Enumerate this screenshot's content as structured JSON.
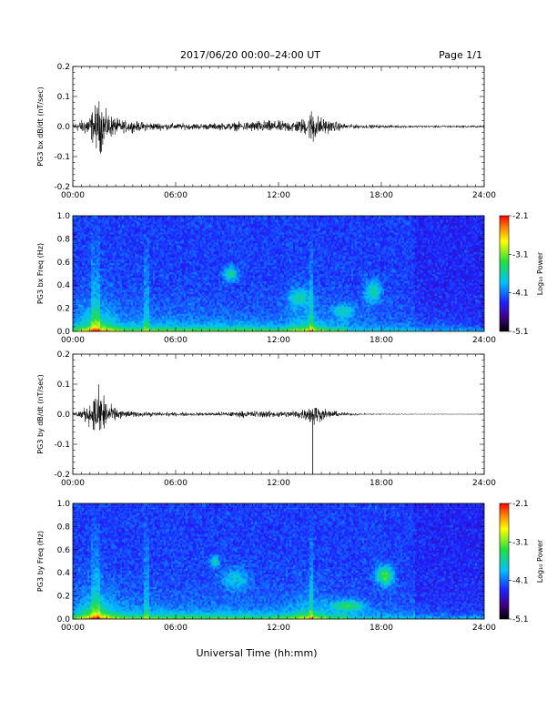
{
  "header": {
    "title": "2017/06/20  00:00–24:00 UT",
    "page_label": "Page 1/1"
  },
  "footer": {
    "xlabel": "Universal Time (hh:mm)"
  },
  "chart_data": [
    {
      "type": "line",
      "ylabel": "PG3 bx dB/dt (nT/sec)",
      "xlim_hours": [
        0,
        24
      ],
      "ylim": [
        -0.2,
        0.2
      ],
      "yticks": [
        "0.2",
        "0.1",
        "0.0",
        "-0.1",
        "-0.2"
      ],
      "xticks": [
        "00:00",
        "06:00",
        "12:00",
        "18:00",
        "24:00"
      ],
      "envelope_hours": [
        0,
        0.5,
        1.0,
        1.3,
        1.6,
        1.8,
        2.0,
        2.3,
        2.6,
        3.0,
        4.0,
        6.0,
        8.0,
        9.0,
        10.0,
        11.0,
        12.0,
        13.0,
        13.7,
        14.0,
        14.2,
        14.5,
        15.0,
        16.0,
        17.0,
        18.0,
        20.0,
        22.0,
        24.0
      ],
      "envelope_amplitude": [
        0.012,
        0.02,
        0.04,
        0.07,
        0.09,
        0.06,
        0.045,
        0.035,
        0.025,
        0.02,
        0.015,
        0.01,
        0.01,
        0.012,
        0.015,
        0.02,
        0.018,
        0.02,
        0.03,
        0.07,
        0.04,
        0.03,
        0.02,
        0.008,
        0.006,
        0.005,
        0.004,
        0.004,
        0.004
      ],
      "grid": false
    },
    {
      "type": "heatmap",
      "ylabel": "PG3 bx Freq (Hz)",
      "xlim_hours": [
        0,
        24
      ],
      "ylim": [
        0.0,
        1.0
      ],
      "yticks": [
        "1.0",
        "0.8",
        "0.6",
        "0.4",
        "0.2",
        "0.0"
      ],
      "xticks": [
        "00:00",
        "06:00",
        "12:00",
        "18:00",
        "24:00"
      ],
      "colorbar": {
        "label": "Log₁₀ Power",
        "ticks": [
          "-2.1",
          "-3.1",
          "-4.1",
          "-5.1"
        ],
        "range": [
          -5.1,
          -2.1
        ]
      }
    },
    {
      "type": "line",
      "ylabel": "PG3 by dB/dt (nT/sec)",
      "xlim_hours": [
        0,
        24
      ],
      "ylim": [
        -0.2,
        0.2
      ],
      "yticks": [
        "0.2",
        "0.1",
        "0.0",
        "-0.1",
        "-0.2"
      ],
      "xticks": [
        "00:00",
        "06:00",
        "12:00",
        "18:00",
        "24:00"
      ],
      "envelope_hours": [
        0,
        0.5,
        1.0,
        1.3,
        1.6,
        1.8,
        2.0,
        2.3,
        2.6,
        3.0,
        4.0,
        6.0,
        8.0,
        9.0,
        10.0,
        11.0,
        12.0,
        13.0,
        13.7,
        14.0,
        14.2,
        14.5,
        15.0,
        16.0,
        17.0,
        18.0,
        20.0,
        22.0,
        24.0
      ],
      "envelope_amplitude": [
        0.008,
        0.015,
        0.035,
        0.06,
        0.1,
        0.07,
        0.04,
        0.025,
        0.018,
        0.012,
        0.008,
        0.006,
        0.006,
        0.008,
        0.01,
        0.012,
        0.01,
        0.012,
        0.02,
        0.045,
        0.03,
        0.02,
        0.012,
        0.005,
        0.003,
        0.002,
        0.001,
        0.001,
        0.001
      ],
      "spike": {
        "hour": 14.0,
        "min": -0.2
      },
      "grid": false
    },
    {
      "type": "heatmap",
      "ylabel": "PG3 by Freq (Hz)",
      "xlim_hours": [
        0,
        24
      ],
      "ylim": [
        0.0,
        1.0
      ],
      "yticks": [
        "1.0",
        "0.8",
        "0.6",
        "0.4",
        "0.2",
        "0.0"
      ],
      "xticks": [
        "00:00",
        "06:00",
        "12:00",
        "18:00",
        "24:00"
      ],
      "colorbar": {
        "label": "Log₁₀ Power",
        "ticks": [
          "-2.1",
          "-3.1",
          "-4.1",
          "-5.1"
        ],
        "range": [
          -5.1,
          -2.1
        ]
      }
    }
  ]
}
